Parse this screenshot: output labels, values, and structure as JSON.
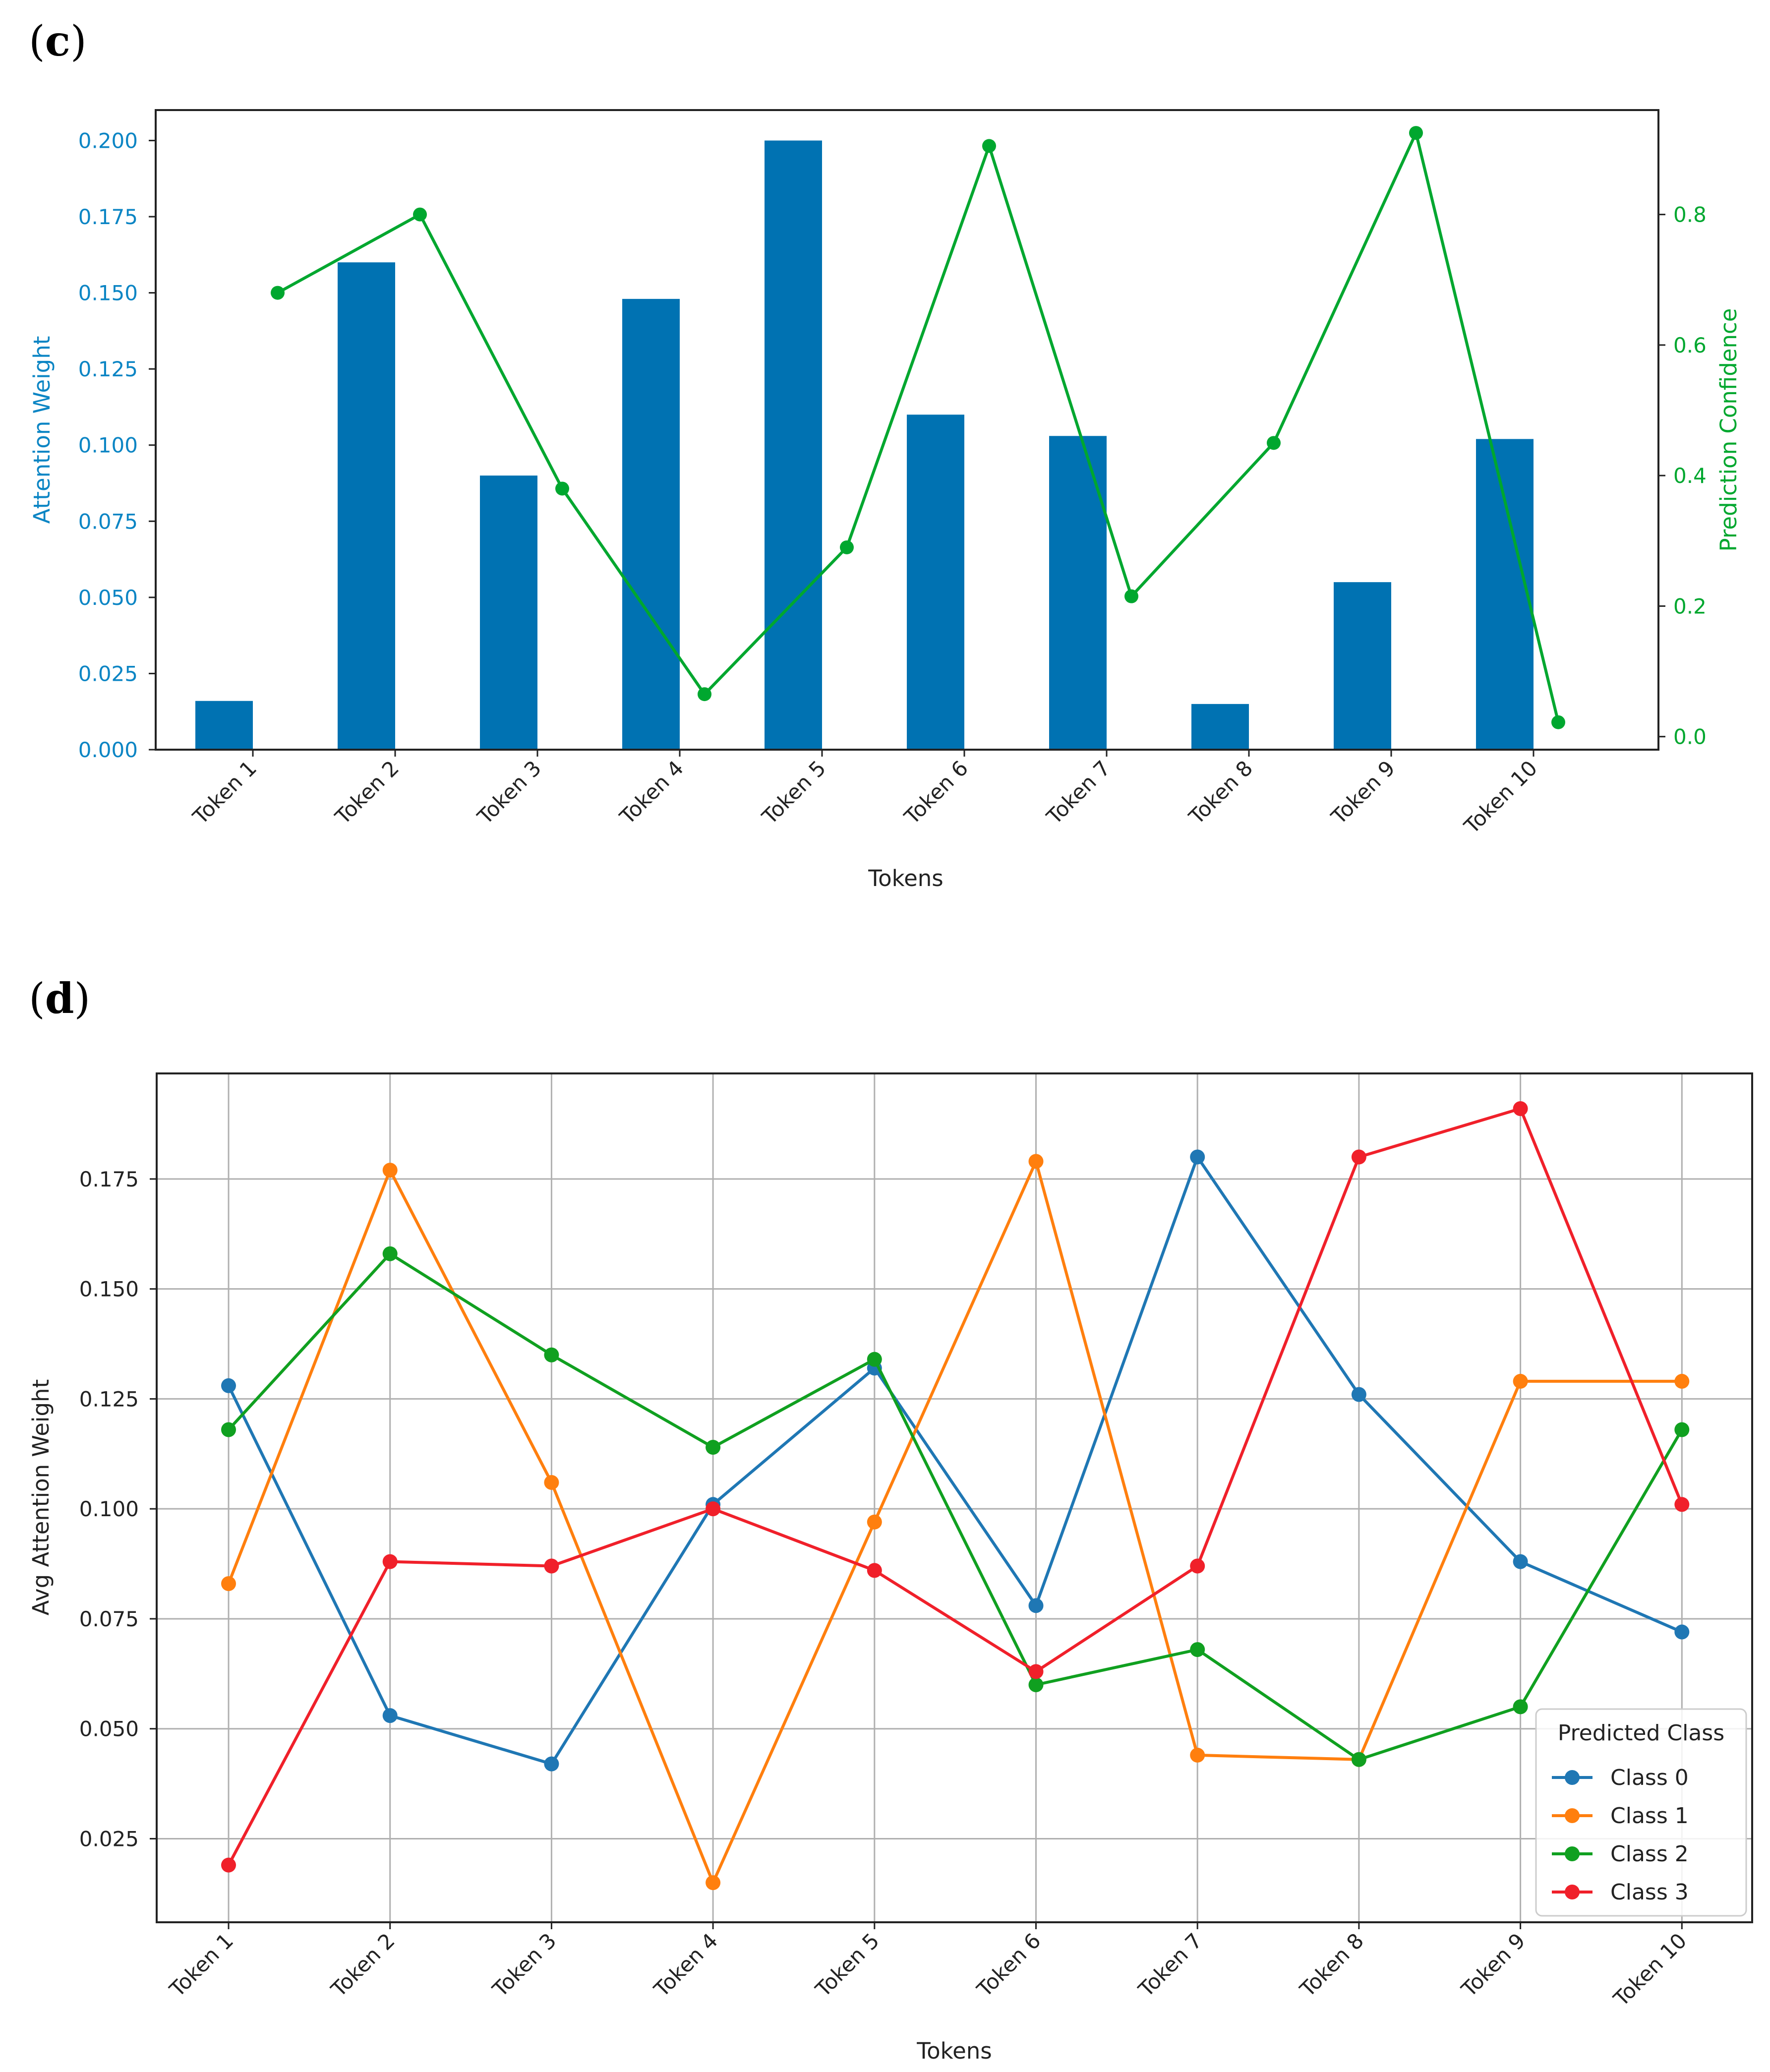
{
  "chart_data": [
    {
      "panel_label": "(c)",
      "panel_letter": "c",
      "type": "bar",
      "categories": [
        "Token 1",
        "Token 2",
        "Token 3",
        "Token 4",
        "Token 5",
        "Token 6",
        "Token 7",
        "Token 8",
        "Token 9",
        "Token 10"
      ],
      "series": [
        {
          "name": "Attention Weight",
          "type": "bar",
          "axis": "left",
          "color": "#0072b2",
          "values": [
            0.016,
            0.16,
            0.09,
            0.148,
            0.2,
            0.11,
            0.103,
            0.015,
            0.055,
            0.102
          ]
        },
        {
          "name": "Prediction Confidence",
          "type": "line",
          "axis": "right",
          "color": "#00a72f",
          "values": [
            0.68,
            0.8,
            0.38,
            0.065,
            0.29,
            0.905,
            0.215,
            0.45,
            0.925,
            0.022
          ]
        }
      ],
      "xlabel": "Tokens",
      "ylabel": "Attention Weight",
      "ylabel_right": "Prediction Confidence",
      "ylim": [
        0,
        0.21
      ],
      "yticks": [
        "0.000",
        "0.025",
        "0.050",
        "0.075",
        "0.100",
        "0.125",
        "0.150",
        "0.175",
        "0.200"
      ],
      "ylim_right": [
        -0.02,
        0.96
      ],
      "yticks_right": [
        "0.0",
        "0.2",
        "0.4",
        "0.6",
        "0.8"
      ],
      "left_axis_color": "#0b85c4",
      "right_axis_color": "#00a72f",
      "grid": false
    },
    {
      "panel_label": "(d)",
      "panel_letter": "d",
      "type": "line",
      "categories": [
        "Token 1",
        "Token 2",
        "Token 3",
        "Token 4",
        "Token 5",
        "Token 6",
        "Token 7",
        "Token 8",
        "Token 9",
        "Token 10"
      ],
      "series": [
        {
          "name": "Class 0",
          "color": "#1f77b4",
          "values": [
            0.128,
            0.053,
            0.042,
            0.101,
            0.132,
            0.078,
            0.18,
            0.126,
            0.088,
            0.072
          ]
        },
        {
          "name": "Class 1",
          "color": "#ff7f0e",
          "values": [
            0.083,
            0.177,
            0.106,
            0.015,
            0.097,
            0.179,
            0.044,
            0.043,
            0.129,
            0.129
          ]
        },
        {
          "name": "Class 2",
          "color": "#10a020",
          "values": [
            0.118,
            0.158,
            0.135,
            0.114,
            0.134,
            0.06,
            0.068,
            0.043,
            0.055,
            0.118
          ]
        },
        {
          "name": "Class 3",
          "color": "#f0202a",
          "values": [
            0.019,
            0.088,
            0.087,
            0.1,
            0.086,
            0.063,
            0.087,
            0.18,
            0.191,
            0.101
          ]
        }
      ],
      "title": "",
      "xlabel": "Tokens",
      "ylabel": "Avg Attention Weight",
      "ylim": [
        0.006,
        0.199
      ],
      "yticks": [
        "0.025",
        "0.050",
        "0.075",
        "0.100",
        "0.125",
        "0.150",
        "0.175"
      ],
      "grid": true,
      "legend_title": "Predicted Class",
      "legend_position": "lower right"
    }
  ]
}
